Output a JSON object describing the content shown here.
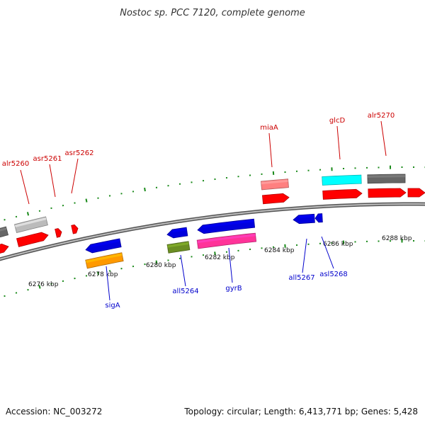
{
  "title": "Nostoc sp. PCC 7120, complete genome",
  "footer": {
    "accession": "Accession: NC_003272",
    "summary": "Topology: circular; Length: 6,413,771 bp; Genes: 5,428"
  },
  "colors": {
    "backbone": "#888888",
    "tick": "#1a8a1a",
    "forward_label": "#cc0000",
    "reverse_label": "#0000cc"
  },
  "scale": {
    "unit": "kbp",
    "tick_labels": [
      "6276 kbp",
      "6278 kbp",
      "6280 kbp",
      "6282 kbp",
      "6284 kbp",
      "6286 kbp",
      "6288 kbp"
    ]
  },
  "genes": [
    {
      "name": "alr5260",
      "strand": "forward"
    },
    {
      "name": "asr5261",
      "strand": "forward"
    },
    {
      "name": "asr5262",
      "strand": "forward"
    },
    {
      "name": "miaA",
      "strand": "forward"
    },
    {
      "name": "glcD",
      "strand": "forward"
    },
    {
      "name": "alr5270",
      "strand": "forward"
    },
    {
      "name": "sigA",
      "strand": "reverse"
    },
    {
      "name": "all5264",
      "strand": "reverse"
    },
    {
      "name": "gyrB",
      "strand": "reverse"
    },
    {
      "name": "all5267",
      "strand": "reverse"
    },
    {
      "name": "asl5268",
      "strand": "reverse"
    }
  ],
  "feature_colors": {
    "red": "#ff0000",
    "blue": "#0000dd",
    "orange": "#ff9900",
    "olive": "#6b8e23",
    "magenta": "#ff3399",
    "salmon": "#ff8080",
    "cyan": "#00ffff",
    "light_gray": "#bbbbbb",
    "dark_gray": "#666666"
  }
}
